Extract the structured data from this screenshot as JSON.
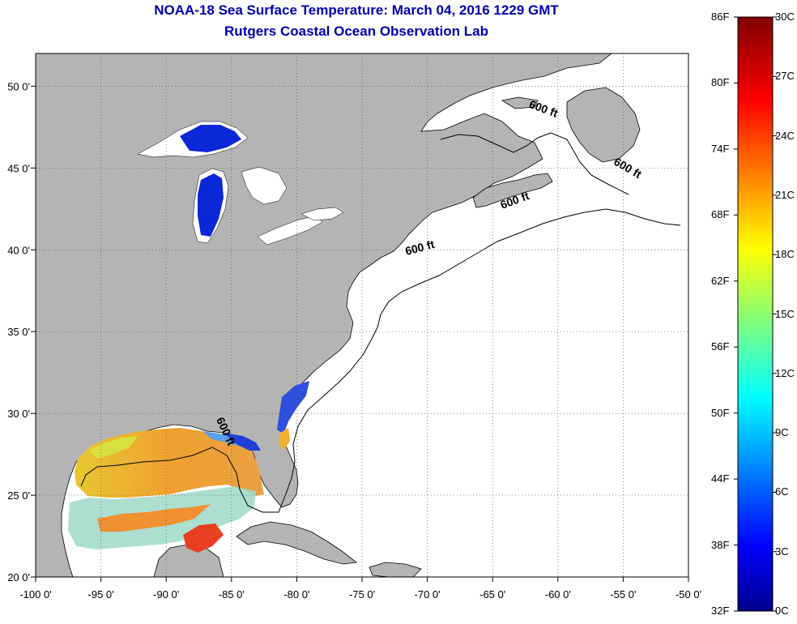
{
  "title": {
    "line1": "NOAA-18 Sea Surface Temperature:  March 04, 2016 1229 GMT",
    "line2": "Rutgers Coastal Ocean Observation Lab"
  },
  "map": {
    "lon_range": [
      -100,
      -50
    ],
    "lat_range": [
      20,
      52
    ],
    "lon_ticks": [
      {
        "value": -100,
        "label": "-100 0'"
      },
      {
        "value": -95,
        "label": "-95 0'"
      },
      {
        "value": -90,
        "label": "-90 0'"
      },
      {
        "value": -85,
        "label": "-85 0'"
      },
      {
        "value": -80,
        "label": "-80 0'"
      },
      {
        "value": -75,
        "label": "-75 0'"
      },
      {
        "value": -70,
        "label": "-70 0'"
      },
      {
        "value": -65,
        "label": "-65 0'"
      },
      {
        "value": -60,
        "label": "-60 0'"
      },
      {
        "value": -55,
        "label": "-55 0'"
      },
      {
        "value": -50,
        "label": "-50 0'"
      }
    ],
    "lat_ticks": [
      {
        "value": 50,
        "label": "50 0'"
      },
      {
        "value": 45,
        "label": "45 0'"
      },
      {
        "value": 40,
        "label": "40 0'"
      },
      {
        "value": 35,
        "label": "35 0'"
      },
      {
        "value": 30,
        "label": "30 0'"
      },
      {
        "value": 25,
        "label": "25 0'"
      },
      {
        "value": 20,
        "label": "20 0'"
      }
    ],
    "contour_labels": [
      {
        "text": "600 ft",
        "lon": -61.2,
        "lat": 48.4,
        "rotate": 20
      },
      {
        "text": "600 ft",
        "lon": -54.8,
        "lat": 44.8,
        "rotate": 30
      },
      {
        "text": "600 ft",
        "lon": -63.2,
        "lat": 42.8,
        "rotate": -20
      },
      {
        "text": "600 ft",
        "lon": -70.5,
        "lat": 39.9,
        "rotate": -15
      },
      {
        "text": "600 ft",
        "lon": -85.7,
        "lat": 28.8,
        "rotate": 65
      }
    ],
    "land_color": "#b4b4b4",
    "ocean_color": "#ffffff",
    "grid_style": "dotted"
  },
  "colorbar": {
    "f_labels": [
      "86F",
      "80F",
      "74F",
      "68F",
      "62F",
      "56F",
      "50F",
      "44F",
      "38F",
      "32F"
    ],
    "c_labels": [
      "30C",
      "27C",
      "24C",
      "21C",
      "18C",
      "15C",
      "12C",
      "9C",
      "6C",
      "3C",
      "0C"
    ],
    "range_c": [
      0,
      30
    ],
    "range_f": [
      32,
      86
    ],
    "colormap": "jet"
  }
}
